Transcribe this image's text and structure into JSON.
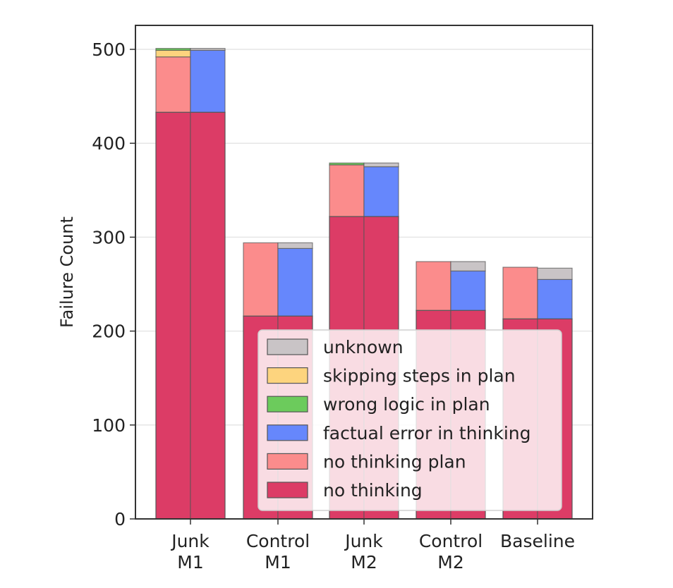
{
  "chart_data": {
    "type": "bar",
    "stacked": true,
    "ylabel": "Failure Count",
    "xlabel": "",
    "ylim": [
      0,
      525
    ],
    "yticks": [
      0,
      100,
      200,
      300,
      400,
      500
    ],
    "grid": "horizontal",
    "categories": [
      {
        "id": "junk-m1",
        "label_lines": [
          "Junk",
          "M1"
        ]
      },
      {
        "id": "control-m1",
        "label_lines": [
          "Control",
          "M1"
        ]
      },
      {
        "id": "junk-m2",
        "label_lines": [
          "Junk",
          "M2"
        ]
      },
      {
        "id": "control-m2",
        "label_lines": [
          "Control",
          "M2"
        ]
      },
      {
        "id": "baseline",
        "label_lines": [
          "Baseline"
        ]
      }
    ],
    "bars_per_category": [
      "left",
      "right"
    ],
    "series": [
      {
        "name": "no thinking",
        "color": "#dc3c66",
        "bar": "both",
        "values": [
          433,
          216,
          322,
          222,
          213
        ]
      },
      {
        "name": "no thinking plan",
        "color": "#fb8c8c",
        "bar": "left",
        "values": [
          59,
          78,
          55,
          52,
          55
        ]
      },
      {
        "name": "skipping steps in plan",
        "color": "#fdd47e",
        "bar": "left",
        "values": [
          7,
          0,
          0,
          0,
          0
        ]
      },
      {
        "name": "wrong logic in plan",
        "color": "#6ccb5c",
        "bar": "left",
        "values": [
          2,
          0,
          2,
          0,
          0
        ]
      },
      {
        "name": "factual error in thinking",
        "color": "#6687fc",
        "bar": "right",
        "values": [
          66,
          72,
          53,
          42,
          42
        ]
      },
      {
        "name": "unknown",
        "color": "#c9c4c6",
        "bar": "right",
        "values": [
          2,
          6,
          4,
          10,
          12
        ]
      }
    ],
    "legend": {
      "position": "lower-right",
      "entries": [
        "unknown",
        "skipping steps in plan",
        "wrong logic in plan",
        "factual error in thinking",
        "no thinking plan",
        "no thinking"
      ]
    }
  }
}
